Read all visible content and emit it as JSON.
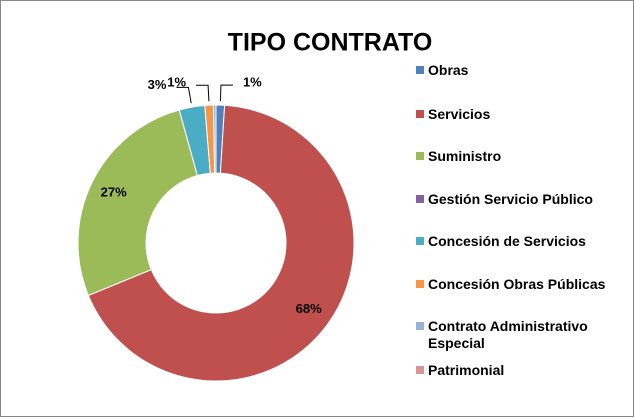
{
  "chart_data": {
    "type": "doughnut",
    "title": "TIPO CONTRATO",
    "categories": [
      "Obras",
      "Servicios",
      "Suministro",
      "Gestión Servicio Público",
      "Concesión de Servicios",
      "Concesión Obras Públicas",
      "Contrato Administrativo Especial",
      "Patrimonial"
    ],
    "values": [
      1,
      68,
      27,
      0,
      3,
      1,
      0.3,
      0
    ],
    "value_labels": [
      "1%",
      "68%",
      "27%",
      null,
      "3%",
      "1%",
      null,
      null
    ],
    "colors": [
      "#4f81bd",
      "#c0504d",
      "#9bbb59",
      "#8064a2",
      "#4bacc6",
      "#f79646",
      "#95b3d7",
      "#d99694"
    ],
    "legend": "right"
  }
}
